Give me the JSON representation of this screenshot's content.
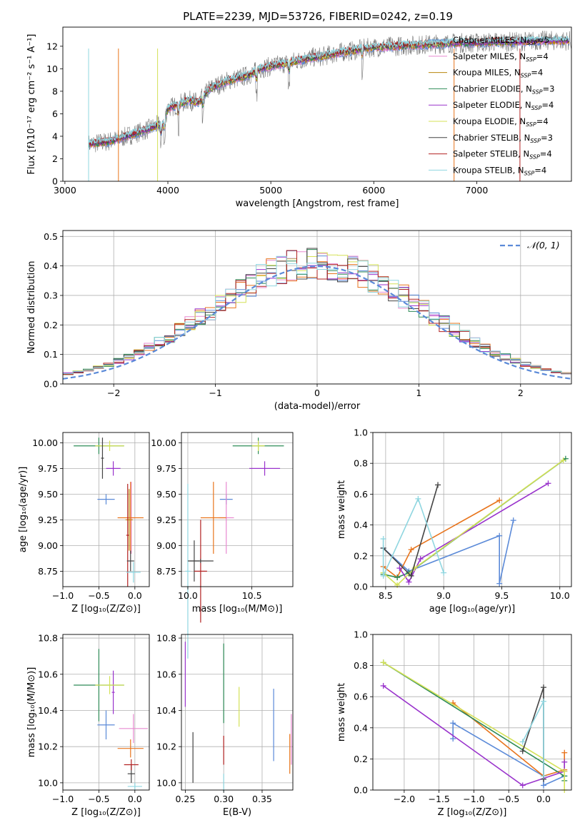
{
  "colors": {
    "Chabrier MILES": "#5b8ad8",
    "Salpeter MILES": "#e88ad0",
    "Kroupa MILES": "#b8860b",
    "Chabrier ELODIE": "#2e8b57",
    "Salpeter ELODIE": "#9932cc",
    "Kroupa ELODIE": "#d4e157",
    "Chabrier STELIB": "#444444",
    "Salpeter STELIB": "#b22222",
    "Kroupa STELIB": "#8fd6e0",
    "orange": "#e8741c",
    "gauss": "#5b8ad8"
  },
  "chart_data": [
    {
      "id": "spectrum",
      "type": "line",
      "title": "PLATE=2239, MJD=53726, FIBERID=0242, z=0.19",
      "xlabel": "wavelength [Angstrom, rest frame]",
      "ylabel": "Flux [fλ10⁻¹⁷ erg cm⁻² s⁻¹ A⁻¹]",
      "xlim": [
        2980,
        7920
      ],
      "ylim": [
        0,
        13.7
      ],
      "xticks": [
        3000,
        4000,
        5000,
        6000,
        7000
      ],
      "yticks": [
        0,
        2,
        4,
        6,
        8,
        10,
        12
      ],
      "legend": "right",
      "legend_entries": [
        {
          "label": "Chabrier MILES, N",
          "sub": "SSP",
          "suffix": "=5"
        },
        {
          "label": "Salpeter MILES, N",
          "sub": "SSP",
          "suffix": "=4"
        },
        {
          "label": "Kroupa MILES, N",
          "sub": "SSP",
          "suffix": "=4"
        },
        {
          "label": "Chabrier ELODIE, N",
          "sub": "SSP",
          "suffix": "=3"
        },
        {
          "label": "Salpeter ELODIE, N",
          "sub": "SSP",
          "suffix": "=4"
        },
        {
          "label": "Kroupa ELODIE, N",
          "sub": "SSP",
          "suffix": "=4"
        },
        {
          "label": "Chabrier STELIB, N",
          "sub": "SSP",
          "suffix": "=3"
        },
        {
          "label": "Salpeter STELIB, N",
          "sub": "SSP",
          "suffix": "=4"
        },
        {
          "label": "Kroupa STELIB, N",
          "sub": "SSP",
          "suffix": "=4"
        }
      ],
      "continuum": {
        "x": [
          3200,
          3230,
          3400,
          3500,
          3600,
          3700,
          3800,
          3900,
          3950,
          4000,
          4100,
          4200,
          4300,
          4400,
          4500,
          4600,
          4700,
          4800,
          4900,
          5000,
          5100,
          5200,
          5300,
          5400,
          5500,
          5600,
          5700,
          5800,
          5900,
          6000,
          6200,
          6400,
          6600,
          6800,
          7000,
          7200,
          7400,
          7600,
          7800,
          7920
        ],
        "y": [
          0,
          3.3,
          3.5,
          3.7,
          4.0,
          4.3,
          4.6,
          5.0,
          5.0,
          6.5,
          6.8,
          7.2,
          7.0,
          8.2,
          8.6,
          9.0,
          9.2,
          9.5,
          10.0,
          10.2,
          10.4,
          10.6,
          10.8,
          11.0,
          11.1,
          11.3,
          11.5,
          11.6,
          11.8,
          11.9,
          12.0,
          12.1,
          12.2,
          12.3,
          12.3,
          12.4,
          12.4,
          12.5,
          12.5,
          12.5
        ]
      }
    },
    {
      "id": "residuals",
      "type": "step",
      "xlabel": "(data-model)/error",
      "ylabel": "Normed distribution",
      "xlim": [
        -2.5,
        2.5
      ],
      "ylim": [
        0,
        0.52
      ],
      "xticks": [
        -2,
        -1,
        0,
        1,
        2
      ],
      "yticks": [
        0.0,
        0.1,
        0.2,
        0.3,
        0.4,
        0.5
      ],
      "legend": "top-right",
      "gauss_label": "𝒩(0, 1)"
    },
    {
      "id": "age-vs-Z",
      "type": "errorbar",
      "xlabel": "Z [log₁₀(Z/Z⊙)]",
      "ylabel": "age  [log₁₀(age/yr)]",
      "xlim": [
        -1.0,
        0.2
      ],
      "ylim": [
        8.6,
        10.1
      ],
      "xticks": [
        -1.0,
        -0.5,
        0.0
      ],
      "yticks": [
        8.75,
        9.0,
        9.25,
        9.5,
        9.75,
        10.0
      ],
      "points": [
        {
          "c": "Chabrier MILES",
          "x": -0.4,
          "xe": 0.12,
          "y": 9.45,
          "ye": 0.05
        },
        {
          "c": "Salpeter MILES",
          "x": -0.05,
          "xe": 0.05,
          "y": 9.27,
          "ye": 0.35
        },
        {
          "c": "Kroupa MILES",
          "x": -0.08,
          "xe": 0.05,
          "y": 9.25,
          "ye": 0.3
        },
        {
          "c": "orange",
          "x": -0.06,
          "xe": 0.18,
          "y": 9.27,
          "ye": 0.35
        },
        {
          "c": "Chabrier ELODIE",
          "x": -0.5,
          "xe": 0.35,
          "y": 9.97,
          "ye": 0.08
        },
        {
          "c": "Salpeter ELODIE",
          "x": -0.3,
          "xe": 0.1,
          "y": 9.75,
          "ye": 0.07
        },
        {
          "c": "Kroupa ELODIE",
          "x": -0.35,
          "xe": 0.2,
          "y": 9.97,
          "ye": 0.05
        },
        {
          "c": "Chabrier STELIB",
          "x": -0.45,
          "xe": 0.02,
          "y": 9.85,
          "ye": 0.2
        },
        {
          "c": "Salpeter STELIB",
          "x": -0.1,
          "xe": 0.02,
          "y": 9.1,
          "ye": 0.5
        },
        {
          "c": "Chabrier STELIB",
          "x": -0.06,
          "xe": 0.05,
          "y": 8.85,
          "ye": 0.1
        },
        {
          "c": "Kroupa STELIB",
          "x": -0.02,
          "xe": 0.1,
          "y": 8.74,
          "ye": 0.1
        }
      ]
    },
    {
      "id": "age-vs-mass",
      "type": "errorbar",
      "xlabel": "mass [log₁₀(M/M⊙)]",
      "xlim": [
        9.95,
        10.82
      ],
      "ylim": [
        8.6,
        10.1
      ],
      "xticks": [
        10.0,
        10.5
      ],
      "yticks": [
        8.75,
        9.0,
        9.25,
        9.5,
        9.75,
        10.0
      ],
      "points": [
        {
          "c": "Chabrier MILES",
          "x": 10.3,
          "xe": 0.05,
          "y": 9.45,
          "ye": 0.05
        },
        {
          "c": "Salpeter MILES",
          "x": 10.3,
          "xe": 0.06,
          "y": 9.27,
          "ye": 0.35
        },
        {
          "c": "orange",
          "x": 10.2,
          "xe": 0.1,
          "y": 9.27,
          "ye": 0.35
        },
        {
          "c": "Chabrier ELODIE",
          "x": 10.55,
          "xe": 0.2,
          "y": 9.97,
          "ye": 0.08
        },
        {
          "c": "Salpeter ELODIE",
          "x": 10.6,
          "xe": 0.12,
          "y": 9.75,
          "ye": 0.07
        },
        {
          "c": "Kroupa ELODIE",
          "x": 10.55,
          "xe": 0.05,
          "y": 9.97,
          "ye": 0.05
        },
        {
          "c": "Chabrier STELIB",
          "x": 10.05,
          "xe": 0.04,
          "y": 8.85,
          "ye": 0.2
        },
        {
          "c": "Salpeter STELIB",
          "x": 10.1,
          "xe": 0.05,
          "y": 8.75,
          "ye": 0.5
        },
        {
          "c": "Kroupa STELIB",
          "x": 10.0,
          "xe": 0.02,
          "y": 8.75,
          "ye": 0.85
        },
        {
          "c": "Chabrier STELIB",
          "x": 10.1,
          "xe": 0.1,
          "y": 8.85,
          "ye": 0.02
        }
      ]
    },
    {
      "id": "weight-vs-age",
      "type": "line",
      "xlabel": "age  [log₁₀(age/yr)]",
      "ylabel": "mass weight",
      "xlim": [
        8.39,
        10.1
      ],
      "ylim": [
        0,
        1.0
      ],
      "xticks": [
        8.5,
        9.0,
        9.5,
        10.0
      ],
      "yticks": [
        0.0,
        0.2,
        0.4,
        0.6,
        0.8,
        1.0
      ],
      "series": [
        {
          "c": "Chabrier MILES",
          "x": [
            8.48,
            8.7,
            9.48,
            9.48,
            9.6
          ],
          "y": [
            0.25,
            0.1,
            0.33,
            0.02,
            0.43
          ]
        },
        {
          "c": "orange",
          "x": [
            8.48,
            8.6,
            8.72,
            9.48
          ],
          "y": [
            0.13,
            0.06,
            0.24,
            0.56
          ]
        },
        {
          "c": "Chabrier ELODIE",
          "x": [
            8.48,
            8.6,
            8.7,
            10.05
          ],
          "y": [
            0.08,
            0.06,
            0.09,
            0.83
          ]
        },
        {
          "c": "Salpeter ELODIE",
          "x": [
            8.62,
            8.7,
            8.8,
            9.9
          ],
          "y": [
            0.12,
            0.03,
            0.18,
            0.67
          ]
        },
        {
          "c": "Kroupa ELODIE",
          "x": [
            8.48,
            8.6,
            8.75,
            10.03
          ],
          "y": [
            0.09,
            0.01,
            0.12,
            0.82
          ]
        },
        {
          "c": "Chabrier STELIB",
          "x": [
            8.48,
            8.72,
            8.95
          ],
          "y": [
            0.25,
            0.07,
            0.66
          ]
        },
        {
          "c": "Kroupa STELIB",
          "x": [
            8.48,
            8.48,
            8.78,
            9.0
          ],
          "y": [
            0.31,
            0.07,
            0.57,
            0.09
          ]
        }
      ]
    },
    {
      "id": "mass-vs-Z",
      "type": "errorbar",
      "xlabel": "Z [log₁₀(Z/Z⊙)]",
      "ylabel": "mass [log₁₀(M/M⊙)]",
      "xlim": [
        -1.0,
        0.2
      ],
      "ylim": [
        9.96,
        10.82
      ],
      "xticks": [
        -1.0,
        -0.5,
        0.0
      ],
      "yticks": [
        10.0,
        10.2,
        10.4,
        10.6,
        10.8
      ],
      "points": [
        {
          "c": "Chabrier MILES",
          "x": -0.4,
          "xe": 0.12,
          "y": 10.32,
          "ye": 0.08
        },
        {
          "c": "Salpeter MILES",
          "x": -0.02,
          "xe": 0.2,
          "y": 10.3,
          "ye": 0.08
        },
        {
          "c": "orange",
          "x": -0.06,
          "xe": 0.18,
          "y": 10.19,
          "ye": 0.05
        },
        {
          "c": "Chabrier ELODIE",
          "x": -0.5,
          "xe": 0.35,
          "y": 10.54,
          "ye": 0.2
        },
        {
          "c": "Salpeter ELODIE",
          "x": -0.3,
          "xe": 0.02,
          "y": 10.5,
          "ye": 0.12
        },
        {
          "c": "Kroupa ELODIE",
          "x": -0.35,
          "xe": 0.2,
          "y": 10.54,
          "ye": 0.05
        },
        {
          "c": "Chabrier STELIB",
          "x": -0.05,
          "xe": 0.05,
          "y": 10.05,
          "ye": 0.05
        },
        {
          "c": "Salpeter STELIB",
          "x": -0.05,
          "xe": 0.1,
          "y": 10.1,
          "ye": 0.03
        },
        {
          "c": "Kroupa STELIB",
          "x": 0.0,
          "xe": 0.1,
          "y": 9.98,
          "ye": 0.02
        }
      ]
    },
    {
      "id": "mass-vs-EBV",
      "type": "errorbar",
      "xlabel": "E(B-V)",
      "xlim": [
        0.245,
        0.39
      ],
      "ylim": [
        9.96,
        10.82
      ],
      "xticks": [
        0.25,
        0.3,
        0.35
      ],
      "yticks": [
        10.0,
        10.2,
        10.4,
        10.6,
        10.8
      ],
      "points": [
        {
          "c": "Chabrier MILES",
          "x": 0.365,
          "xe": 0.0,
          "y": 10.32,
          "ye": 0.2
        },
        {
          "c": "Salpeter MILES",
          "x": 0.388,
          "xe": 0.0,
          "y": 10.24,
          "ye": 0.14
        },
        {
          "c": "orange",
          "x": 0.386,
          "xe": 0.0,
          "y": 10.16,
          "ye": 0.11
        },
        {
          "c": "Chabrier ELODIE",
          "x": 0.3,
          "xe": 0.0,
          "y": 10.55,
          "ye": 0.22
        },
        {
          "c": "Salpeter ELODIE",
          "x": 0.25,
          "xe": 0.0,
          "y": 10.6,
          "ye": 0.18
        },
        {
          "c": "Kroupa ELODIE",
          "x": 0.32,
          "xe": 0.0,
          "y": 10.42,
          "ye": 0.11
        },
        {
          "c": "Chabrier STELIB",
          "x": 0.26,
          "xe": 0.0,
          "y": 10.14,
          "ye": 0.14
        },
        {
          "c": "Salpeter STELIB",
          "x": 0.3,
          "xe": 0.0,
          "y": 10.18,
          "ye": 0.08
        },
        {
          "c": "Kroupa STELIB",
          "x": 0.3,
          "xe": 0.0,
          "y": 10.0,
          "ye": 0.05
        }
      ]
    },
    {
      "id": "weight-vs-Z",
      "type": "line",
      "xlabel": "Z [log₁₀(Z/Z⊙)]",
      "ylabel": "mass weight",
      "xlim": [
        -2.45,
        0.4
      ],
      "ylim": [
        0,
        1.0
      ],
      "xticks": [
        -2.0,
        -1.5,
        -1.0,
        -0.5,
        0.0
      ],
      "yticks": [
        0.0,
        0.2,
        0.4,
        0.6,
        0.8,
        1.0
      ],
      "series": [
        {
          "c": "Chabrier MILES",
          "x": [
            -1.3,
            -1.3,
            0.0,
            0.0,
            0.3
          ],
          "y": [
            0.33,
            0.43,
            0.09,
            0.03,
            0.09
          ]
        },
        {
          "c": "orange",
          "x": [
            -1.3,
            0.0,
            0.3,
            0.3
          ],
          "y": [
            0.56,
            0.09,
            0.13,
            0.24
          ]
        },
        {
          "c": "Chabrier ELODIE",
          "x": [
            -2.3,
            0.3,
            0.3
          ],
          "y": [
            0.82,
            0.09,
            0.06
          ]
        },
        {
          "c": "Salpeter ELODIE",
          "x": [
            -2.3,
            -0.3,
            0.3,
            0.3
          ],
          "y": [
            0.67,
            0.03,
            0.12,
            0.18
          ]
        },
        {
          "c": "Kroupa ELODIE",
          "x": [
            -2.3,
            0.3,
            0.3
          ],
          "y": [
            0.82,
            0.12,
            0.0
          ]
        },
        {
          "c": "Chabrier STELIB",
          "x": [
            -0.3,
            0.0,
            0.0
          ],
          "y": [
            0.25,
            0.66,
            0.07
          ]
        },
        {
          "c": "Kroupa STELIB",
          "x": [
            -0.3,
            0.0,
            0.0
          ],
          "y": [
            0.31,
            0.57,
            0.09
          ]
        }
      ]
    }
  ]
}
